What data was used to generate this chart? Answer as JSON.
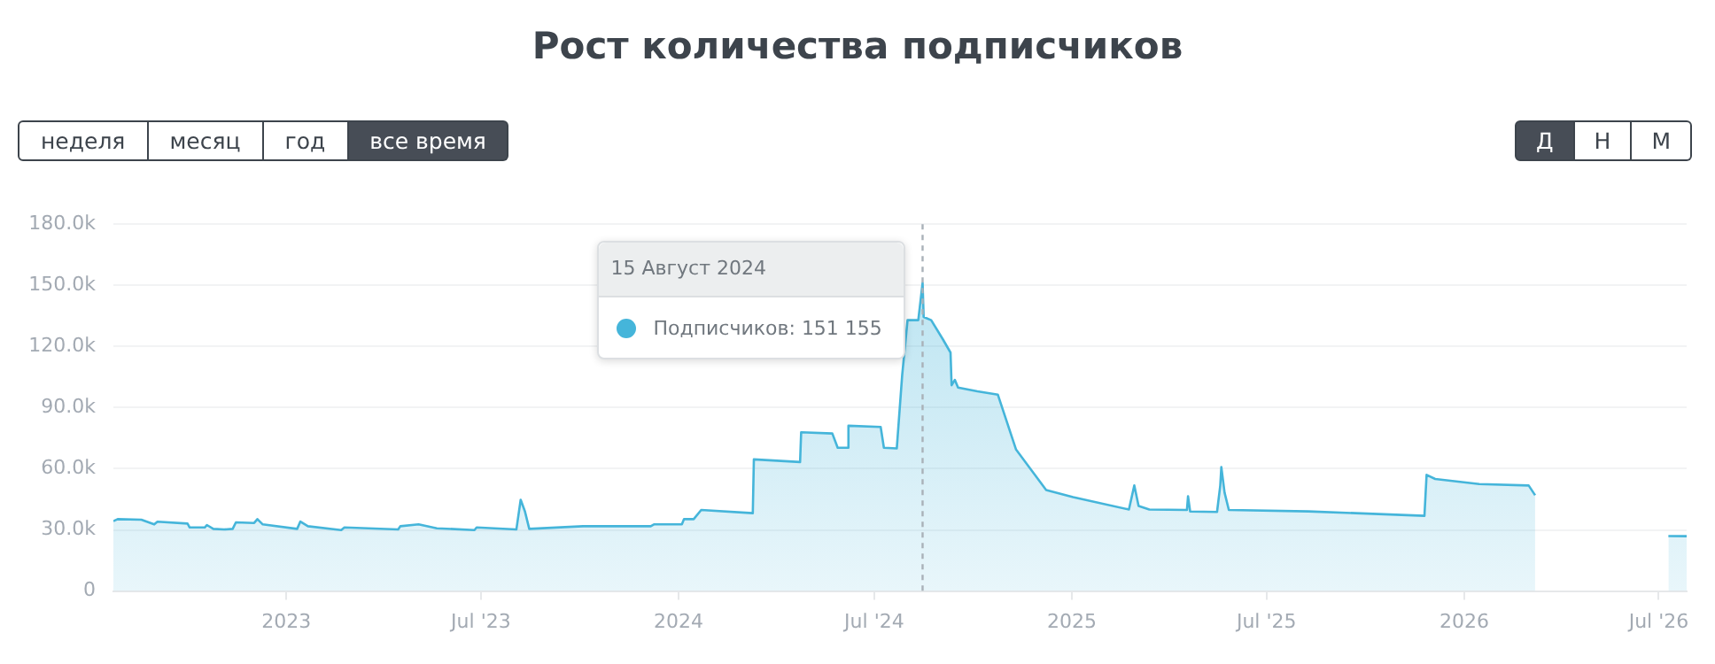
{
  "chart_data": {
    "type": "area",
    "title": "Рост количества подписчиков",
    "x": [
      "2022-07-24",
      "2022-07-28",
      "2022-08-19",
      "2022-08-31",
      "2022-09-03",
      "2022-10-01",
      "2022-10-03",
      "2022-10-17",
      "2022-10-19",
      "2022-10-25",
      "2022-11-04",
      "2022-11-12",
      "2022-11-15",
      "2022-12-02",
      "2022-12-05",
      "2022-12-10",
      "2023-01-11",
      "2023-01-14",
      "2023-01-21",
      "2023-02-21",
      "2023-02-24",
      "2023-04-15",
      "2023-04-17",
      "2023-05-04",
      "2023-05-21",
      "2023-06-25",
      "2023-06-27",
      "2023-08-03",
      "2023-08-07",
      "2023-08-11",
      "2023-08-15",
      "2023-10-04",
      "2023-12-06",
      "2023-12-09",
      "2024-01-04",
      "2024-01-06",
      "2024-01-15",
      "2024-01-22",
      "2024-03-10",
      "2024-03-11",
      "2024-04-23",
      "2024-04-24",
      "2024-05-23",
      "2024-05-28",
      "2024-06-06",
      "2024-06-07",
      "2024-07-07",
      "2024-07-10",
      "2024-07-22",
      "2024-07-27",
      "2024-08-01",
      "2024-08-11",
      "2024-08-15",
      "2024-08-16",
      "2024-08-23",
      "2024-09-03",
      "2024-09-10",
      "2024-09-11",
      "2024-09-14",
      "2024-09-17",
      "2024-10-05",
      "2024-10-24",
      "2024-11-10",
      "2024-12-08",
      "2025-01-02",
      "2025-02-23",
      "2025-02-28",
      "2025-03-04",
      "2025-03-14",
      "2025-04-18",
      "2025-04-19",
      "2025-04-21",
      "2025-05-16",
      "2025-05-19",
      "2025-05-20",
      "2025-05-23",
      "2025-05-27",
      "2025-08-09",
      "2025-11-25",
      "2025-11-27",
      "2025-12-05",
      "2026-01-15",
      "2026-03-02",
      "2026-03-08",
      "2026-05-01",
      "2026-07-10",
      "2026-07-27"
    ],
    "series": [
      {
        "name": null,
        "color": "#45b5da",
        "values": [
          34300,
          35300,
          35000,
          32700,
          34000,
          33100,
          31200,
          31200,
          32400,
          30500,
          30200,
          30500,
          33700,
          33400,
          35300,
          32700,
          30500,
          34100,
          31800,
          29900,
          31200,
          30200,
          31800,
          32700,
          30800,
          29900,
          31200,
          30200,
          44800,
          39000,
          30500,
          31800,
          31800,
          32700,
          32700,
          35300,
          35300,
          39800,
          38200,
          64600,
          63300,
          77900,
          77300,
          70300,
          70300,
          81100,
          80500,
          70300,
          70000,
          105900,
          132900,
          132900,
          151155,
          134500,
          132900,
          123400,
          117000,
          101000,
          103600,
          99800,
          98000,
          96400,
          69400,
          49600,
          46100,
          40000,
          51800,
          41700,
          40000,
          39800,
          46500,
          39000,
          38800,
          51800,
          60800,
          48300,
          39800,
          39100,
          36900,
          57000,
          55000,
          52500,
          51800,
          47000,
          null,
          27000,
          26900
        ]
      }
    ],
    "xlim": [
      "2022-07-24",
      "2026-07-27"
    ],
    "xticks": [
      {
        "value": "2023-01-01",
        "label": "2023"
      },
      {
        "value": "2023-07-01",
        "label": "Jul '23"
      },
      {
        "value": "2024-01-01",
        "label": "2024"
      },
      {
        "value": "2024-07-01",
        "label": "Jul '24"
      },
      {
        "value": "2025-01-01",
        "label": "2025"
      },
      {
        "value": "2025-07-01",
        "label": "Jul '25"
      },
      {
        "value": "2026-01-01",
        "label": "2026"
      },
      {
        "value": "2026-07-01",
        "label": "Jul '26"
      }
    ],
    "ylim": [
      0,
      180000
    ],
    "yticks": [
      0,
      {
        "value": 30000,
        "label": "30.0k"
      },
      {
        "value": 60000,
        "label": "60.0k"
      },
      {
        "value": 90000,
        "label": "90.0k"
      },
      {
        "value": 120000,
        "label": "120.0k"
      },
      {
        "value": 150000,
        "label": "150.0k"
      },
      {
        "value": 180000,
        "label": "180.0k"
      }
    ],
    "grid": "y",
    "legend": false,
    "marker": "none",
    "ref_lines": [
      {
        "axis": "x",
        "value": "2024-08-15",
        "label": null,
        "color": "#a9b1b8",
        "line_style": "dashed"
      }
    ],
    "annotations": [
      "неделя",
      "месяц",
      "год",
      "все время",
      "Д",
      "Н",
      "М",
      "15 Август 2024",
      "Подписчиков:  151 155"
    ]
  }
}
